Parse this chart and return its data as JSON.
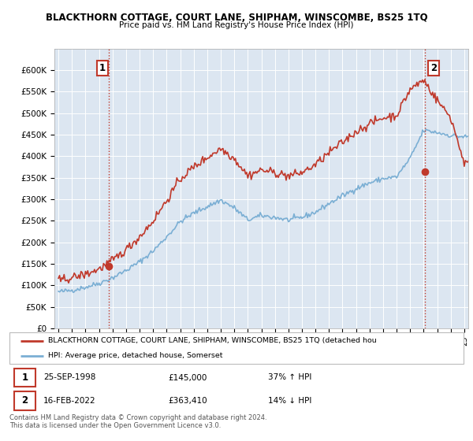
{
  "title": "BLACKTHORN COTTAGE, COURT LANE, SHIPHAM, WINSCOMBE, BS25 1TQ",
  "subtitle": "Price paid vs. HM Land Registry's House Price Index (HPI)",
  "ylim": [
    0,
    650000
  ],
  "yticks": [
    0,
    50000,
    100000,
    150000,
    200000,
    250000,
    300000,
    350000,
    400000,
    450000,
    500000,
    550000,
    600000
  ],
  "hpi_color": "#7bafd4",
  "property_color": "#c0392b",
  "vline_color": "#c0392b",
  "plot_bg": "#dce6f1",
  "legend_label_property": "BLACKTHORN COTTAGE, COURT LANE, SHIPHAM, WINSCOMBE, BS25 1TQ (detached hou",
  "legend_label_hpi": "HPI: Average price, detached house, Somerset",
  "transaction1_date": "25-SEP-1998",
  "transaction1_price": "£145,000",
  "transaction1_hpi": "37% ↑ HPI",
  "transaction2_date": "16-FEB-2022",
  "transaction2_price": "£363,410",
  "transaction2_hpi": "14% ↓ HPI",
  "footer": "Contains HM Land Registry data © Crown copyright and database right 2024.\nThis data is licensed under the Open Government Licence v3.0.",
  "x_start_year": 1995,
  "x_end_year": 2025,
  "sale1_year": 1998.73,
  "sale1_price": 145000,
  "sale2_year": 2022.12,
  "sale2_price": 363410
}
